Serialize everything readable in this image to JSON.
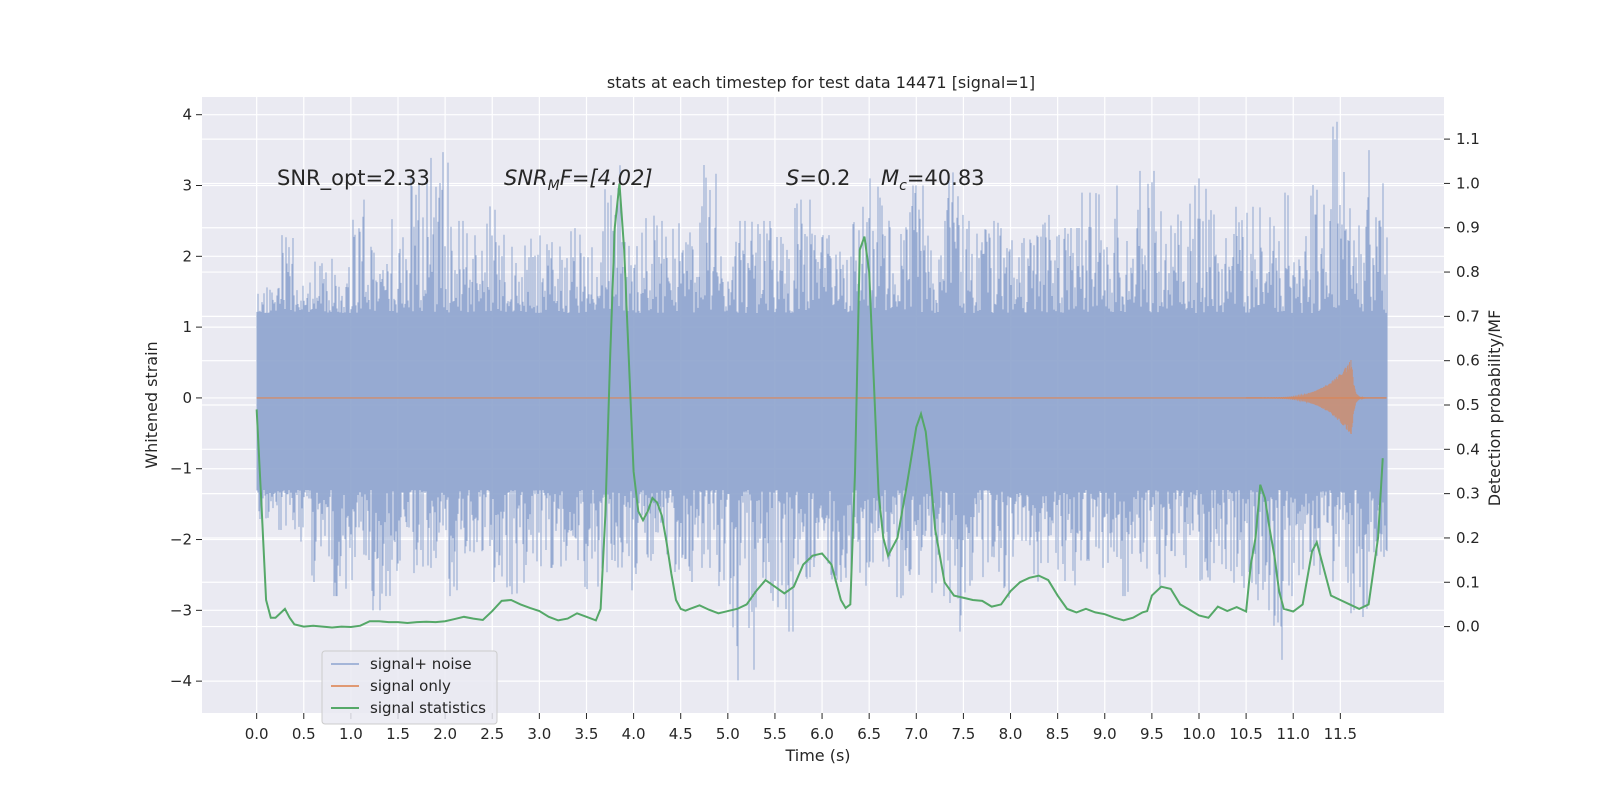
{
  "chart_data": {
    "type": "line",
    "title": "stats at each timestep for test data 14471 [signal=1]",
    "xlabel": "Time (s)",
    "ylabel_left": "Whitened strain",
    "ylabel_right": "Detection probability/MF",
    "xlim": [
      -0.58,
      12.6
    ],
    "ylim_left": [
      -4.45,
      4.25
    ],
    "ylim_right": [
      -0.195,
      1.195
    ],
    "x_ticks": [
      "0.0",
      "0.5",
      "1.0",
      "1.5",
      "2.0",
      "2.5",
      "3.0",
      "3.5",
      "4.0",
      "4.5",
      "5.0",
      "5.5",
      "6.0",
      "6.5",
      "7.0",
      "7.5",
      "8.0",
      "8.5",
      "9.0",
      "9.5",
      "10.0",
      "10.5",
      "11.0",
      "11.5"
    ],
    "y_ticks_left": [
      "4",
      "3",
      "2",
      "1",
      "0",
      "−1",
      "−2",
      "−3",
      "−4"
    ],
    "y_ticks_right": [
      "1.1",
      "1.0",
      "0.9",
      "0.8",
      "0.7",
      "0.6",
      "0.5",
      "0.4",
      "0.3",
      "0.2",
      "0.1",
      "0.0"
    ],
    "grid": true,
    "legend_position": "lower-left",
    "annotations": {
      "snr_opt": "SNR_opt=2.33",
      "snr_mf_name": "SNR",
      "snr_mf_sub": "M",
      "snr_mf_value": "F=[4.02]",
      "s_name": "S",
      "s_value": "=0.2",
      "mc_name": "M",
      "mc_sub": "c",
      "mc_value": "=40.83"
    },
    "series": [
      {
        "name": "signal+ noise",
        "color": "#92a8d1",
        "axis": "left",
        "x_range": [
          0.0,
          11.99
        ],
        "typical_band": [
          -1.3,
          1.2
        ],
        "envelope_top": [
          1.6,
          2.3,
          1.7,
          2.0,
          1.9,
          2.8,
          2.1,
          2.6,
          3.4,
          3.8,
          2.5,
          2.4,
          2.8,
          2.2,
          2.4,
          2.2,
          2.6,
          2.3,
          3.4,
          2.2,
          2.7,
          2.5,
          2.6,
          3.3,
          2.2,
          2.5,
          2.5,
          2.4,
          2.8,
          2.3,
          2.3,
          2.7,
          3.1,
          2.5,
          3.0,
          2.5,
          3.2,
          2.5,
          2.5,
          2.3,
          2.5,
          2.6,
          2.4,
          2.9,
          3.0,
          2.7,
          3.3,
          2.8,
          3.0,
          3.1,
          2.4,
          2.7,
          2.7,
          2.9,
          2.7,
          3.3,
          3.9,
          2.8,
          3.5
        ],
        "envelope_bottom": [
          -1.8,
          -2.0,
          -2.6,
          -2.3,
          -2.8,
          -2.4,
          -3.0,
          -2.5,
          -2.7,
          -2.4,
          -2.8,
          -2.3,
          -2.6,
          -2.9,
          -2.5,
          -2.4,
          -2.3,
          -2.7,
          -2.5,
          -2.8,
          -2.3,
          -2.5,
          -2.6,
          -2.4,
          -3.3,
          -4.1,
          -3.0,
          -3.3,
          -2.6,
          -2.5,
          -2.6,
          -2.7,
          -2.4,
          -2.9,
          -2.5,
          -2.8,
          -3.3,
          -2.7,
          -2.5,
          -2.9,
          -2.6,
          -2.5,
          -2.8,
          -2.3,
          -2.4,
          -2.8,
          -2.5,
          -2.7,
          -2.4,
          -2.6,
          -2.5,
          -2.7,
          -3.0,
          -3.7,
          -2.8,
          -2.5,
          -2.9,
          -3.1,
          -2.4
        ]
      },
      {
        "name": "signal only",
        "color": "#dd8452",
        "axis": "left",
        "x_range": [
          0.0,
          11.99
        ],
        "chirp_start": 10.5,
        "chirp_peak_time": 11.62,
        "chirp_peak_amplitude": 0.55
      },
      {
        "name": "signal statistics",
        "color": "#55a868",
        "axis": "right",
        "x": [
          0.0,
          0.05,
          0.1,
          0.15,
          0.2,
          0.3,
          0.35,
          0.4,
          0.5,
          0.6,
          0.7,
          0.8,
          0.9,
          1.0,
          1.1,
          1.2,
          1.3,
          1.4,
          1.5,
          1.6,
          1.7,
          1.8,
          1.9,
          2.0,
          2.1,
          2.2,
          2.3,
          2.4,
          2.5,
          2.6,
          2.7,
          2.8,
          2.9,
          3.0,
          3.1,
          3.2,
          3.3,
          3.4,
          3.5,
          3.6,
          3.65,
          3.7,
          3.75,
          3.8,
          3.85,
          3.9,
          3.95,
          4.0,
          4.05,
          4.1,
          4.15,
          4.2,
          4.25,
          4.3,
          4.35,
          4.4,
          4.45,
          4.5,
          4.55,
          4.6,
          4.7,
          4.8,
          4.9,
          5.0,
          5.1,
          5.2,
          5.3,
          5.4,
          5.5,
          5.6,
          5.7,
          5.8,
          5.9,
          6.0,
          6.1,
          6.2,
          6.25,
          6.3,
          6.35,
          6.4,
          6.45,
          6.5,
          6.55,
          6.6,
          6.65,
          6.7,
          6.8,
          6.9,
          7.0,
          7.05,
          7.1,
          7.15,
          7.2,
          7.3,
          7.4,
          7.5,
          7.6,
          7.7,
          7.8,
          7.9,
          8.0,
          8.1,
          8.2,
          8.3,
          8.4,
          8.5,
          8.6,
          8.7,
          8.8,
          8.9,
          9.0,
          9.1,
          9.2,
          9.3,
          9.4,
          9.45,
          9.5,
          9.6,
          9.7,
          9.8,
          9.9,
          10.0,
          10.1,
          10.2,
          10.3,
          10.4,
          10.5,
          10.55,
          10.6,
          10.65,
          10.7,
          10.75,
          10.8,
          10.85,
          10.9,
          11.0,
          11.1,
          11.2,
          11.25,
          11.3,
          11.4,
          11.5,
          11.6,
          11.7,
          11.8,
          11.9,
          11.95
        ],
        "y": [
          0.49,
          0.28,
          0.06,
          0.02,
          0.02,
          0.04,
          0.02,
          0.005,
          0.0,
          0.002,
          0.0,
          -0.002,
          0.0,
          -0.001,
          0.002,
          0.012,
          0.012,
          0.01,
          0.01,
          0.008,
          0.01,
          0.011,
          0.01,
          0.012,
          0.017,
          0.022,
          0.018,
          0.015,
          0.035,
          0.058,
          0.06,
          0.05,
          0.042,
          0.035,
          0.022,
          0.014,
          0.018,
          0.03,
          0.022,
          0.014,
          0.04,
          0.25,
          0.6,
          0.9,
          1.0,
          0.85,
          0.6,
          0.35,
          0.26,
          0.24,
          0.26,
          0.29,
          0.28,
          0.25,
          0.19,
          0.12,
          0.06,
          0.04,
          0.036,
          0.04,
          0.048,
          0.038,
          0.03,
          0.035,
          0.04,
          0.05,
          0.08,
          0.105,
          0.09,
          0.075,
          0.09,
          0.14,
          0.16,
          0.165,
          0.14,
          0.06,
          0.042,
          0.05,
          0.35,
          0.85,
          0.88,
          0.8,
          0.55,
          0.3,
          0.2,
          0.16,
          0.2,
          0.32,
          0.45,
          0.48,
          0.44,
          0.34,
          0.22,
          0.1,
          0.07,
          0.065,
          0.06,
          0.058,
          0.045,
          0.05,
          0.08,
          0.1,
          0.11,
          0.115,
          0.105,
          0.07,
          0.04,
          0.032,
          0.04,
          0.032,
          0.028,
          0.02,
          0.014,
          0.02,
          0.032,
          0.035,
          0.07,
          0.09,
          0.085,
          0.05,
          0.038,
          0.025,
          0.02,
          0.045,
          0.035,
          0.044,
          0.034,
          0.14,
          0.2,
          0.32,
          0.29,
          0.22,
          0.16,
          0.08,
          0.04,
          0.034,
          0.05,
          0.17,
          0.19,
          0.15,
          0.07,
          0.06,
          0.05,
          0.04,
          0.05,
          0.2,
          0.38
        ]
      }
    ]
  }
}
